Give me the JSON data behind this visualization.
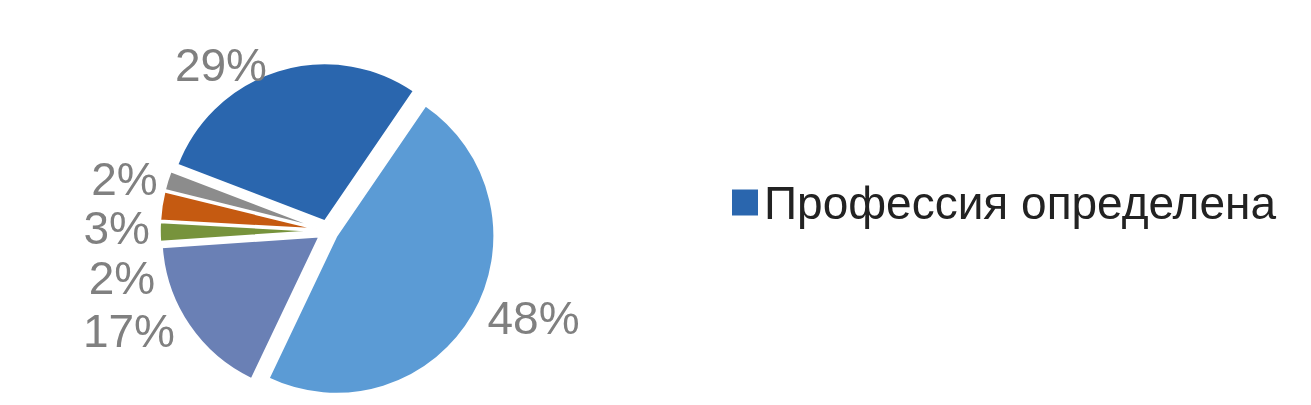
{
  "chart_data": {
    "type": "pie",
    "categories": [
      "Профессия определена",
      null,
      null,
      null,
      null,
      null
    ],
    "values": [
      29,
      48,
      17,
      2,
      3,
      2
    ],
    "colors": [
      "#2a66ae",
      "#5b9bd5",
      "#6a80b5",
      "#77933c",
      "#c55a11",
      "#8c8c8c"
    ],
    "value_labels": [
      "29%",
      "48%",
      "17%",
      "2%",
      "3%",
      "2%"
    ],
    "legend": "right"
  }
}
